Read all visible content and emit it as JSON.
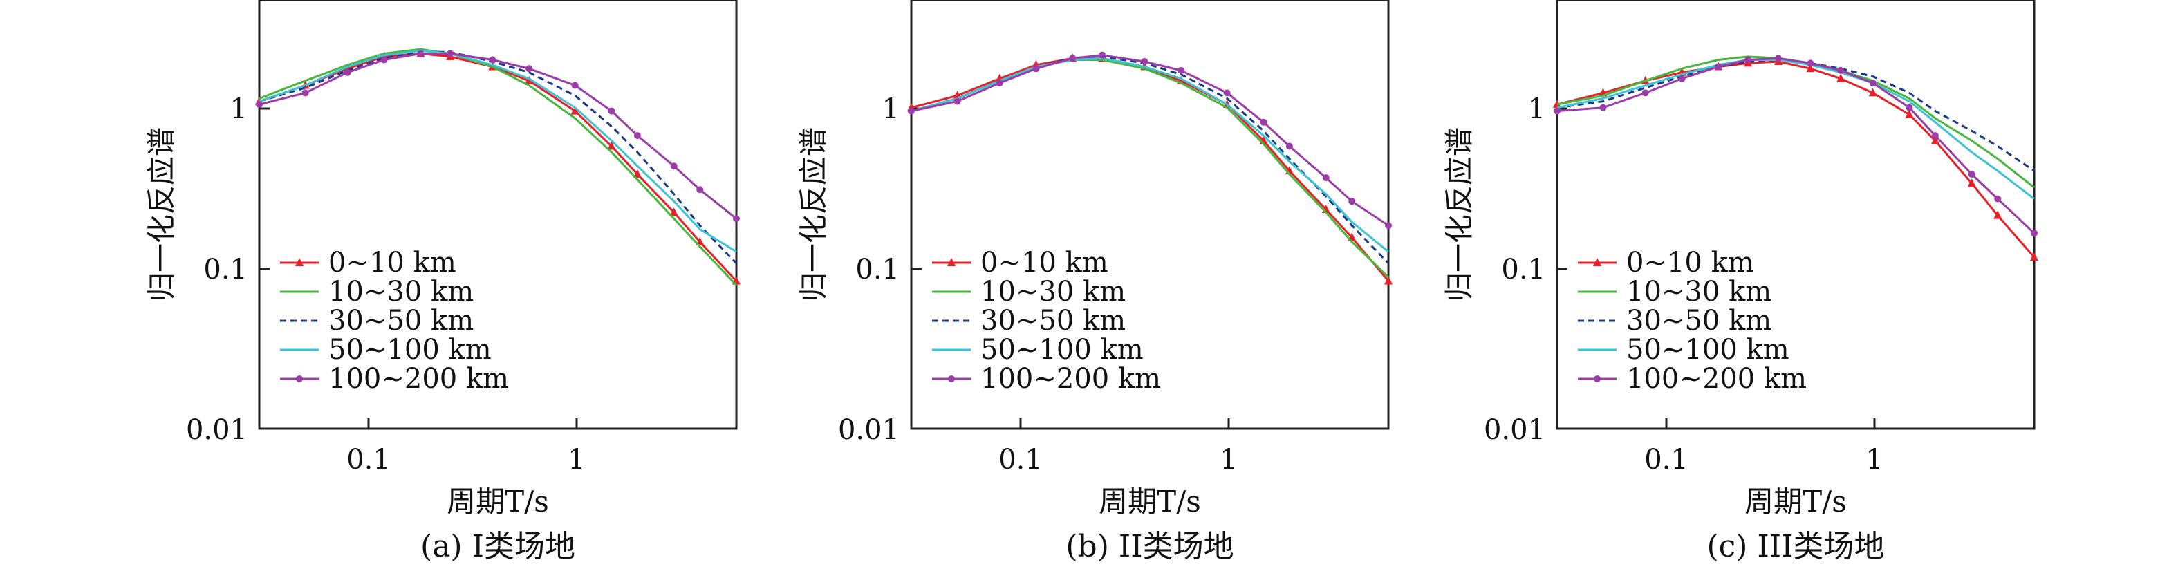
{
  "chart_data": [
    {
      "type": "line",
      "caption": "(a) I类场地",
      "xlabel": "周期T/s",
      "ylabel": "归一化反应谱",
      "xscale": "log",
      "yscale": "log",
      "xlim": [
        0.03,
        6
      ],
      "ylim": [
        0.01,
        5
      ],
      "xticks": [
        "0.1",
        "1"
      ],
      "yticks": [
        "0.01",
        "0.1",
        "1"
      ],
      "legend_position": "lower-left",
      "series": [
        {
          "name": "0~10 km",
          "color": "#e8202a",
          "style": "triangle-marker",
          "points": [
            [
              0.03,
              1.15
            ],
            [
              0.05,
              1.45
            ],
            [
              0.08,
              1.85
            ],
            [
              0.12,
              2.2
            ],
            [
              0.18,
              2.3
            ],
            [
              0.25,
              2.2
            ],
            [
              0.4,
              1.9
            ],
            [
              0.6,
              1.55
            ],
            [
              1.0,
              1.0
            ],
            [
              1.5,
              0.6
            ],
            [
              2.0,
              0.4
            ],
            [
              3.0,
              0.23
            ],
            [
              4.0,
              0.15
            ],
            [
              6.0,
              0.085
            ]
          ]
        },
        {
          "name": "10~30 km",
          "color": "#48b83c",
          "style": "solid",
          "points": [
            [
              0.03,
              1.2
            ],
            [
              0.05,
              1.55
            ],
            [
              0.08,
              1.95
            ],
            [
              0.12,
              2.3
            ],
            [
              0.18,
              2.45
            ],
            [
              0.25,
              2.3
            ],
            [
              0.4,
              1.9
            ],
            [
              0.6,
              1.45
            ],
            [
              1.0,
              0.9
            ],
            [
              1.5,
              0.55
            ],
            [
              2.0,
              0.37
            ],
            [
              3.0,
              0.21
            ],
            [
              4.0,
              0.14
            ],
            [
              6.0,
              0.08
            ]
          ]
        },
        {
          "name": "30~50 km",
          "color": "#1a3a8c",
          "style": "dashed",
          "points": [
            [
              0.03,
              1.15
            ],
            [
              0.05,
              1.4
            ],
            [
              0.08,
              1.8
            ],
            [
              0.12,
              2.15
            ],
            [
              0.18,
              2.35
            ],
            [
              0.25,
              2.35
            ],
            [
              0.4,
              2.05
            ],
            [
              0.6,
              1.75
            ],
            [
              1.0,
              1.25
            ],
            [
              1.5,
              0.8
            ],
            [
              2.0,
              0.55
            ],
            [
              3.0,
              0.3
            ],
            [
              4.0,
              0.19
            ],
            [
              6.0,
              0.11
            ]
          ]
        },
        {
          "name": "50~100 km",
          "color": "#3cc4d4",
          "style": "solid",
          "points": [
            [
              0.03,
              1.15
            ],
            [
              0.05,
              1.45
            ],
            [
              0.08,
              1.9
            ],
            [
              0.12,
              2.25
            ],
            [
              0.18,
              2.4
            ],
            [
              0.25,
              2.3
            ],
            [
              0.4,
              1.95
            ],
            [
              0.6,
              1.6
            ],
            [
              1.0,
              1.05
            ],
            [
              1.5,
              0.65
            ],
            [
              2.0,
              0.45
            ],
            [
              3.0,
              0.27
            ],
            [
              4.0,
              0.18
            ],
            [
              6.0,
              0.13
            ]
          ]
        },
        {
          "name": "100~200 km",
          "color": "#9c3ca8",
          "style": "diamond-marker",
          "points": [
            [
              0.03,
              1.1
            ],
            [
              0.05,
              1.3
            ],
            [
              0.08,
              1.75
            ],
            [
              0.12,
              2.1
            ],
            [
              0.18,
              2.3
            ],
            [
              0.25,
              2.3
            ],
            [
              0.4,
              2.1
            ],
            [
              0.6,
              1.85
            ],
            [
              1.0,
              1.45
            ],
            [
              1.5,
              1.0
            ],
            [
              2.0,
              0.7
            ],
            [
              3.0,
              0.45
            ],
            [
              4.0,
              0.32
            ],
            [
              6.0,
              0.21
            ]
          ]
        }
      ]
    },
    {
      "type": "line",
      "caption": "(b) II类场地",
      "xlabel": "周期T/s",
      "ylabel": "归一化反应谱",
      "xscale": "log",
      "yscale": "log",
      "xlim": [
        0.03,
        6
      ],
      "ylim": [
        0.01,
        5
      ],
      "xticks": [
        "0.1",
        "1"
      ],
      "yticks": [
        "0.01",
        "0.1",
        "1"
      ],
      "legend_position": "lower-left",
      "series": [
        {
          "name": "0~10 km",
          "color": "#e8202a",
          "style": "triangle-marker",
          "points": [
            [
              0.03,
              1.05
            ],
            [
              0.05,
              1.25
            ],
            [
              0.08,
              1.6
            ],
            [
              0.12,
              1.95
            ],
            [
              0.18,
              2.15
            ],
            [
              0.25,
              2.15
            ],
            [
              0.4,
              1.9
            ],
            [
              0.6,
              1.55
            ],
            [
              1.0,
              1.1
            ],
            [
              1.5,
              0.65
            ],
            [
              2.0,
              0.42
            ],
            [
              3.0,
              0.24
            ],
            [
              4.0,
              0.16
            ],
            [
              6.0,
              0.085
            ]
          ]
        },
        {
          "name": "10~30 km",
          "color": "#48b83c",
          "style": "solid",
          "points": [
            [
              0.03,
              1.0
            ],
            [
              0.05,
              1.2
            ],
            [
              0.08,
              1.55
            ],
            [
              0.12,
              1.9
            ],
            [
              0.18,
              2.1
            ],
            [
              0.25,
              2.1
            ],
            [
              0.4,
              1.85
            ],
            [
              0.6,
              1.5
            ],
            [
              1.0,
              1.05
            ],
            [
              1.5,
              0.62
            ],
            [
              2.0,
              0.4
            ],
            [
              3.0,
              0.23
            ],
            [
              4.0,
              0.15
            ],
            [
              6.0,
              0.09
            ]
          ]
        },
        {
          "name": "30~50 km",
          "color": "#1a3a8c",
          "style": "dashed",
          "points": [
            [
              0.03,
              1.0
            ],
            [
              0.05,
              1.2
            ],
            [
              0.08,
              1.55
            ],
            [
              0.12,
              1.9
            ],
            [
              0.18,
              2.15
            ],
            [
              0.25,
              2.2
            ],
            [
              0.4,
              2.0
            ],
            [
              0.6,
              1.7
            ],
            [
              1.0,
              1.2
            ],
            [
              1.5,
              0.75
            ],
            [
              2.0,
              0.5
            ],
            [
              3.0,
              0.29
            ],
            [
              4.0,
              0.19
            ],
            [
              6.0,
              0.11
            ]
          ]
        },
        {
          "name": "50~100 km",
          "color": "#3cc4d4",
          "style": "solid",
          "points": [
            [
              0.03,
              1.0
            ],
            [
              0.05,
              1.2
            ],
            [
              0.08,
              1.55
            ],
            [
              0.12,
              1.9
            ],
            [
              0.18,
              2.1
            ],
            [
              0.25,
              2.15
            ],
            [
              0.4,
              1.9
            ],
            [
              0.6,
              1.6
            ],
            [
              1.0,
              1.1
            ],
            [
              1.5,
              0.7
            ],
            [
              2.0,
              0.48
            ],
            [
              3.0,
              0.3
            ],
            [
              4.0,
              0.2
            ],
            [
              6.0,
              0.13
            ]
          ]
        },
        {
          "name": "100~200 km",
          "color": "#9c3ca8",
          "style": "diamond-marker",
          "points": [
            [
              0.03,
              1.0
            ],
            [
              0.05,
              1.15
            ],
            [
              0.08,
              1.5
            ],
            [
              0.12,
              1.85
            ],
            [
              0.18,
              2.15
            ],
            [
              0.25,
              2.25
            ],
            [
              0.4,
              2.05
            ],
            [
              0.6,
              1.8
            ],
            [
              1.0,
              1.3
            ],
            [
              1.5,
              0.85
            ],
            [
              2.0,
              0.6
            ],
            [
              3.0,
              0.38
            ],
            [
              4.0,
              0.27
            ],
            [
              6.0,
              0.19
            ]
          ]
        }
      ]
    },
    {
      "type": "line",
      "caption": "(c) III类场地",
      "xlabel": "周期T/s",
      "ylabel": "归一化反应谱",
      "xscale": "log",
      "yscale": "log",
      "xlim": [
        0.03,
        6
      ],
      "ylim": [
        0.01,
        5
      ],
      "xticks": [
        "0.1",
        "1"
      ],
      "yticks": [
        "0.01",
        "0.1",
        "1"
      ],
      "legend_position": "lower-left",
      "series": [
        {
          "name": "0~10 km",
          "color": "#e8202a",
          "style": "triangle-marker",
          "points": [
            [
              0.03,
              1.1
            ],
            [
              0.05,
              1.3
            ],
            [
              0.08,
              1.55
            ],
            [
              0.12,
              1.75
            ],
            [
              0.18,
              1.9
            ],
            [
              0.25,
              2.0
            ],
            [
              0.35,
              2.05
            ],
            [
              0.5,
              1.85
            ],
            [
              0.7,
              1.6
            ],
            [
              1.0,
              1.3
            ],
            [
              1.5,
              0.95
            ],
            [
              2.0,
              0.65
            ],
            [
              3.0,
              0.35
            ],
            [
              4.0,
              0.22
            ],
            [
              6.0,
              0.12
            ]
          ]
        },
        {
          "name": "10~30 km",
          "color": "#48b83c",
          "style": "solid",
          "points": [
            [
              0.03,
              1.1
            ],
            [
              0.05,
              1.25
            ],
            [
              0.08,
              1.55
            ],
            [
              0.12,
              1.85
            ],
            [
              0.18,
              2.1
            ],
            [
              0.25,
              2.2
            ],
            [
              0.35,
              2.15
            ],
            [
              0.5,
              2.0
            ],
            [
              0.7,
              1.8
            ],
            [
              1.0,
              1.55
            ],
            [
              1.5,
              1.2
            ],
            [
              2.0,
              0.9
            ],
            [
              3.0,
              0.65
            ],
            [
              4.0,
              0.5
            ],
            [
              6.0,
              0.33
            ]
          ]
        },
        {
          "name": "30~50 km",
          "color": "#1a3a8c",
          "style": "dashed",
          "points": [
            [
              0.03,
              1.05
            ],
            [
              0.05,
              1.15
            ],
            [
              0.08,
              1.4
            ],
            [
              0.12,
              1.65
            ],
            [
              0.18,
              1.9
            ],
            [
              0.25,
              2.05
            ],
            [
              0.35,
              2.1
            ],
            [
              0.5,
              2.0
            ],
            [
              0.7,
              1.85
            ],
            [
              1.0,
              1.65
            ],
            [
              1.5,
              1.3
            ],
            [
              2.0,
              1.0
            ],
            [
              3.0,
              0.75
            ],
            [
              4.0,
              0.6
            ],
            [
              6.0,
              0.42
            ]
          ]
        },
        {
          "name": "50~100 km",
          "color": "#3cc4d4",
          "style": "solid",
          "points": [
            [
              0.03,
              1.05
            ],
            [
              0.05,
              1.2
            ],
            [
              0.08,
              1.45
            ],
            [
              0.12,
              1.7
            ],
            [
              0.18,
              1.95
            ],
            [
              0.25,
              2.1
            ],
            [
              0.35,
              2.1
            ],
            [
              0.5,
              1.95
            ],
            [
              0.7,
              1.75
            ],
            [
              1.0,
              1.5
            ],
            [
              1.5,
              1.15
            ],
            [
              2.0,
              0.85
            ],
            [
              3.0,
              0.55
            ],
            [
              4.0,
              0.42
            ],
            [
              6.0,
              0.28
            ]
          ]
        },
        {
          "name": "100~200 km",
          "color": "#9c3ca8",
          "style": "diamond-marker",
          "points": [
            [
              0.03,
              1.0
            ],
            [
              0.05,
              1.05
            ],
            [
              0.08,
              1.3
            ],
            [
              0.12,
              1.6
            ],
            [
              0.18,
              1.9
            ],
            [
              0.25,
              2.1
            ],
            [
              0.35,
              2.15
            ],
            [
              0.5,
              2.0
            ],
            [
              0.7,
              1.8
            ],
            [
              1.0,
              1.5
            ],
            [
              1.5,
              1.05
            ],
            [
              2.0,
              0.7
            ],
            [
              3.0,
              0.4
            ],
            [
              4.0,
              0.28
            ],
            [
              6.0,
              0.17
            ]
          ]
        }
      ]
    }
  ]
}
